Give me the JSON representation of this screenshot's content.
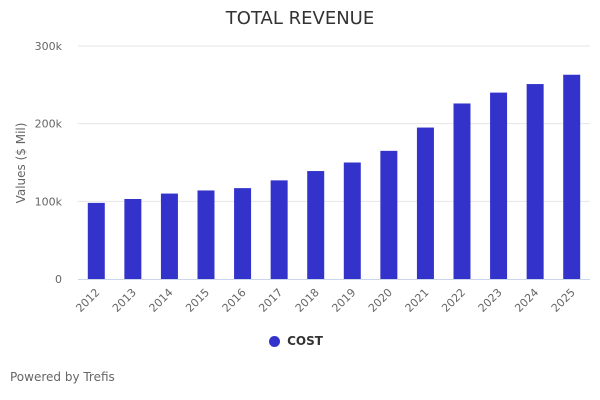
{
  "chart_data": {
    "type": "bar",
    "title": "TOTAL REVENUE",
    "xlabel": "",
    "ylabel": "Values ($ Mil)",
    "ylim": [
      0,
      300000
    ],
    "yticks": [
      0,
      100000,
      200000,
      300000
    ],
    "ytick_labels": [
      "0",
      "100k",
      "200k",
      "300k"
    ],
    "grid": true,
    "legend_position": "bottom-center",
    "categories": [
      "2012",
      "2013",
      "2014",
      "2015",
      "2016",
      "2017",
      "2018",
      "2019",
      "2020",
      "2021",
      "2022",
      "2023",
      "2024",
      "2025"
    ],
    "series": [
      {
        "name": "COST",
        "color": "#3333cc",
        "values": [
          98000,
          103000,
          110000,
          114000,
          117000,
          127000,
          139000,
          150000,
          165000,
          195000,
          226000,
          240000,
          251000,
          263000
        ]
      }
    ]
  },
  "footer": "Powered by Trefis"
}
